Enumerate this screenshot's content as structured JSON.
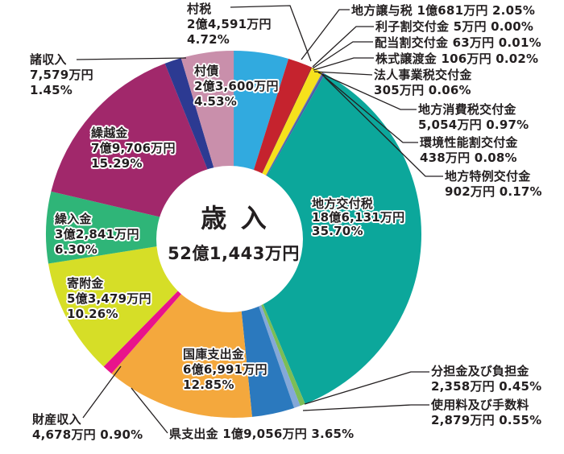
{
  "figure": {
    "background": "#ffffff",
    "text_color": "#231f20",
    "leader_line_color": "#231f20"
  },
  "chart_data": {
    "type": "pie",
    "donut": true,
    "title": "歳入",
    "total": "52億1,443万円",
    "legend_position": "around-slices",
    "slices": [
      {
        "label": "村税",
        "amount": "2億4,591万円",
        "percent": 4.72,
        "color": "#31AADF"
      },
      {
        "label": "地方譲与税",
        "amount": "1億681万円",
        "percent": 2.05,
        "color": "#C5232E"
      },
      {
        "label": "利子割交付金",
        "amount": "5万円",
        "percent": 0.0,
        "color": "#7E1416"
      },
      {
        "label": "配当割交付金",
        "amount": "63万円",
        "percent": 0.01,
        "color": "#8D1B21"
      },
      {
        "label": "株式譲渡金",
        "amount": "106万円",
        "percent": 0.02,
        "color": "#96242A"
      },
      {
        "label": "法人事業税交付金",
        "amount": "305万円",
        "percent": 0.06,
        "color": "#A01E24"
      },
      {
        "label": "地方消費税交付金",
        "amount": "5,054万円",
        "percent": 0.97,
        "color": "#F6E11C"
      },
      {
        "label": "環境性能割交付金",
        "amount": "438万円",
        "percent": 0.08,
        "color": "#5E6CB2"
      },
      {
        "label": "地方特例交付金",
        "amount": "902万円",
        "percent": 0.17,
        "color": "#4C5AA7"
      },
      {
        "label": "地方交付税",
        "amount": "18億6,131万円",
        "percent": 35.7,
        "color": "#0CA79B"
      },
      {
        "label": "分担金及び負担金",
        "amount": "2,358万円",
        "percent": 0.45,
        "color": "#7CBD56"
      },
      {
        "label": "使用料及び手数料",
        "amount": "2,879万円",
        "percent": 0.55,
        "color": "#84A8D8"
      },
      {
        "label": "県支出金",
        "amount": "1億9,056万円",
        "percent": 3.65,
        "color": "#2B79BE"
      },
      {
        "label": "国庫支出金",
        "amount": "6億6,991万円",
        "percent": 12.85,
        "color": "#F4A83D"
      },
      {
        "label": "財産収入",
        "amount": "4,678万円",
        "percent": 0.9,
        "color": "#E8138C"
      },
      {
        "label": "寄附金",
        "amount": "5億3,479万円",
        "percent": 10.26,
        "color": "#D6DE27"
      },
      {
        "label": "繰入金",
        "amount": "3億2,841万円",
        "percent": 6.3,
        "color": "#2FB578"
      },
      {
        "label": "繰越金",
        "amount": "7億9,706万円",
        "percent": 15.29,
        "color": "#A1286B"
      },
      {
        "label": "諸収入",
        "amount": "7,579万円",
        "percent": 1.45,
        "color": "#2C3A92"
      },
      {
        "label": "村債",
        "amount": "2億3,600万円",
        "percent": 4.53,
        "color": "#C98FAB"
      }
    ]
  }
}
